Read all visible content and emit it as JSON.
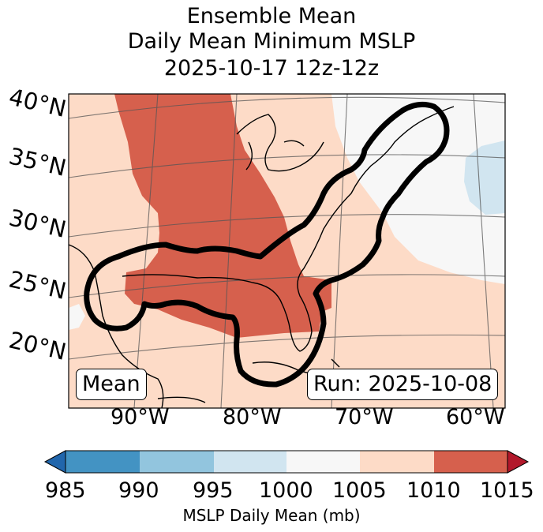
{
  "title": {
    "line1": "Ensemble Mean",
    "line2": "Daily Mean Minimum MSLP",
    "line3": "2025-10-17 12z-12z"
  },
  "map": {
    "lat_labels": [
      "40°N",
      "35°N",
      "30°N",
      "25°N",
      "20°N"
    ],
    "lon_labels": [
      "90°W",
      "80°W",
      "70°W",
      "60°W"
    ],
    "mean_box": "Mean",
    "run_box": "Run: 2025-10-08"
  },
  "colorbar": {
    "ticks": [
      "985",
      "990",
      "995",
      "1000",
      "1005",
      "1010",
      "1015"
    ],
    "label": "MSLP Daily Mean (mb)",
    "colors": {
      "under": "#2166ac",
      "985-990": "#4393c3",
      "990-995": "#92c5de",
      "995-1000": "#d1e5f0",
      "1000-1005": "#f7f7f7",
      "1005-1010": "#fddbc7",
      "1010-1015": "#d6604d",
      "over": "#b2182b"
    }
  }
}
